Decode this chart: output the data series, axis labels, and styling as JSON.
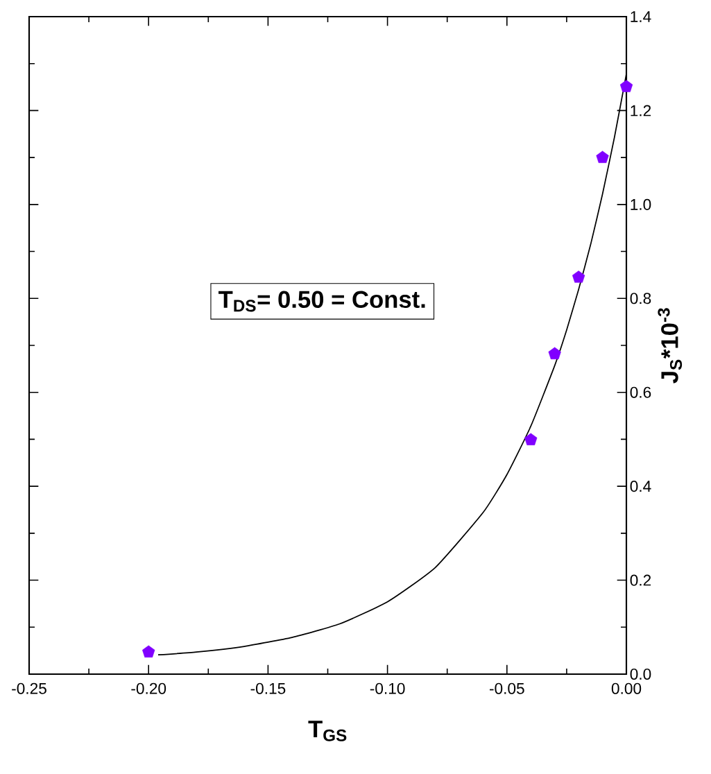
{
  "chart_data": {
    "type": "scatter",
    "xlabel": "T$_{GS}$",
    "ylabel": "J$_{S}$*10$^{-3}$",
    "x": [
      -0.2,
      -0.04,
      -0.03,
      -0.02,
      -0.01,
      0.0
    ],
    "series": [
      {
        "color": "#8000ff",
        "values": [
          0.047,
          0.499,
          0.682,
          0.845,
          1.1,
          1.251
        ]
      },
      {
        "type": "line",
        "color": "#000000",
        "marker": "none",
        "line_style": "solid",
        "x": [
          -0.196,
          -0.18,
          -0.16,
          -0.14,
          -0.12,
          -0.1,
          -0.08,
          -0.06,
          -0.05,
          -0.04,
          -0.03,
          -0.025,
          -0.02,
          -0.015,
          -0.01,
          -0.005,
          0.0
        ],
        "values": [
          0.041,
          0.047,
          0.059,
          0.078,
          0.107,
          0.154,
          0.227,
          0.344,
          0.425,
          0.528,
          0.657,
          0.733,
          0.819,
          0.914,
          1.022,
          1.143,
          1.278
        ]
      }
    ],
    "xlim": [
      -0.25,
      0.0
    ],
    "xticks": [
      {
        "value": -0.25,
        "label": "-0.25"
      },
      {
        "value": -0.2,
        "label": "-0.20"
      },
      {
        "value": -0.15,
        "label": "-0.15"
      },
      {
        "value": -0.1,
        "label": "-0.10"
      },
      {
        "value": -0.05,
        "label": "-0.05"
      },
      {
        "value": 0.0,
        "label": "0.00"
      }
    ],
    "ylim": [
      0.0,
      1.4
    ],
    "yticks": [
      {
        "value": 0.0,
        "label": "0.0"
      },
      {
        "value": 0.2,
        "label": "0.2"
      },
      {
        "value": 0.4,
        "label": "0.4"
      },
      {
        "value": 0.6,
        "label": "0.6"
      },
      {
        "value": 0.8,
        "label": "0.8"
      },
      {
        "value": 1.0,
        "label": "1.0"
      },
      {
        "value": 1.2,
        "label": "1.2"
      },
      {
        "value": 1.4,
        "label": "1.4"
      }
    ],
    "grid": false,
    "annotations": [
      "T$_{DS}$= 0.50 = Const."
    ]
  }
}
